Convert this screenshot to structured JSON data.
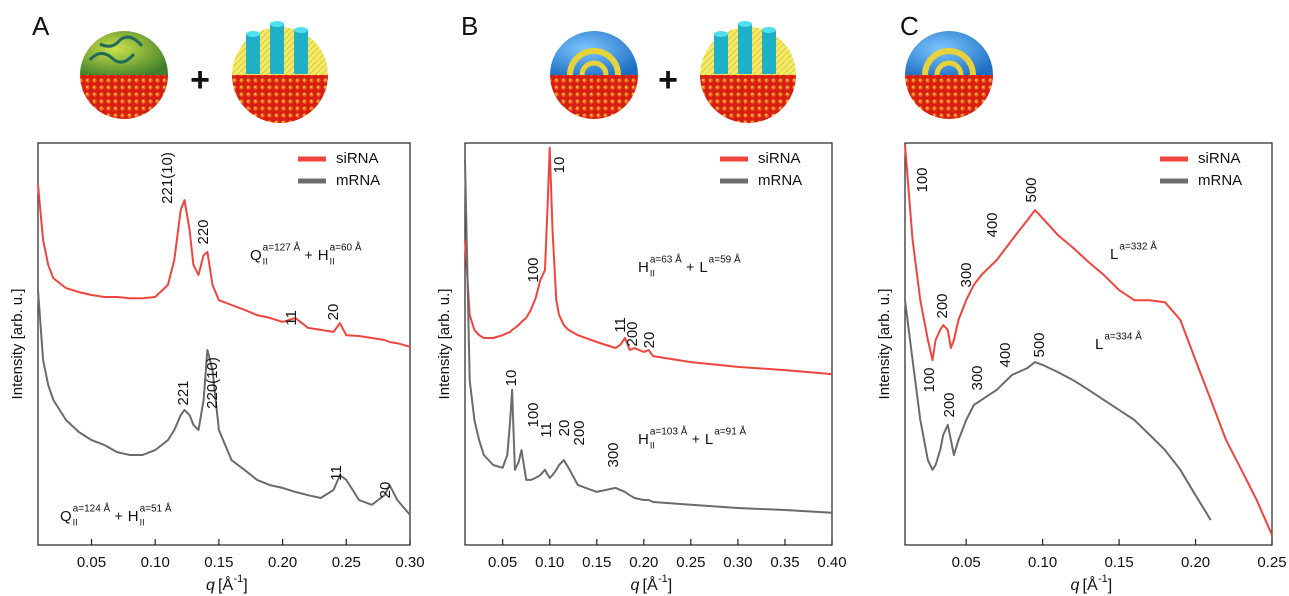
{
  "chart_data": [
    {
      "type": "line",
      "panel_label": "A",
      "plus_sign": "+",
      "xlabel": {
        "symbol": "q",
        "unit": "[Å",
        "exponent": "-1",
        "close": "]"
      },
      "ylabel": "Intensity [arb. u.]",
      "legend": "upper right",
      "xlim": [
        0.008,
        0.3
      ],
      "ylim": [
        0,
        100
      ],
      "xticks": [
        0.05,
        {
          "value": 0.1,
          "label": "0.10"
        },
        0.15,
        {
          "value": 0.2,
          "label": "0.20"
        },
        0.25,
        {
          "value": 0.3,
          "label": "0.30"
        }
      ],
      "x": [
        0.008,
        0.012,
        0.016,
        0.02,
        0.03,
        0.04,
        0.05,
        0.06,
        0.07,
        0.08,
        0.09,
        0.1,
        0.11,
        0.115,
        0.12,
        0.123,
        0.127,
        0.13,
        0.134,
        0.138,
        0.141,
        0.145,
        0.15,
        0.16,
        0.17,
        0.18,
        0.19,
        0.2,
        0.21,
        0.22,
        0.23,
        0.24,
        0.245,
        0.25,
        0.26,
        0.27,
        0.28,
        0.284,
        0.29,
        0.3
      ],
      "series": [
        {
          "name": "siRNA",
          "color": "#f0453f",
          "values": [
            89.6,
            75.9,
            69.7,
            66.4,
            63.9,
            62.9,
            62.2,
            61.7,
            61.7,
            61.4,
            61.4,
            61.7,
            64.7,
            70.9,
            83.3,
            85.8,
            78.4,
            69.7,
            67.2,
            72.1,
            72.9,
            64.7,
            60.9,
            59.7,
            58.5,
            57.2,
            56.5,
            55.5,
            56.5,
            54.0,
            53.5,
            53.0,
            55.2,
            52.2,
            52.0,
            51.5,
            51.0,
            50.5,
            50.2,
            49.3
          ]
        },
        {
          "name": "mRNA",
          "color": "#6b6b6b",
          "values": [
            63.4,
            46.0,
            39.8,
            36.1,
            31.1,
            28.1,
            26.1,
            24.9,
            23.1,
            22.4,
            22.4,
            23.6,
            26.1,
            28.6,
            32.3,
            33.6,
            32.3,
            29.9,
            28.6,
            36.1,
            48.5,
            43.5,
            28.6,
            21.1,
            18.7,
            16.2,
            14.9,
            14.2,
            13.2,
            12.4,
            11.7,
            13.7,
            17.4,
            16.2,
            11.2,
            10.0,
            12.4,
            14.9,
            11.2,
            7.5
          ]
        }
      ],
      "annotations": [
        {
          "text": "221(10)",
          "color": "#f0453f"
        },
        {
          "text": "220",
          "color": "#f0453f"
        },
        {
          "text": "11",
          "color": "#f0453f"
        },
        {
          "text": "20",
          "color": "#f0453f"
        },
        {
          "text": "221",
          "color": "#6b6b6b"
        },
        {
          "text": "220(10)",
          "color": "#6b6b6b"
        },
        {
          "text": "11",
          "color": "#6b6b6b"
        },
        {
          "text": "20",
          "color": "#6b6b6b"
        }
      ],
      "phase_labels": [
        {
          "color": "#f0453f",
          "joiner": "+",
          "terms": [
            {
              "base": "Q",
              "sub": "II",
              "sup": "a=127 Å"
            },
            {
              "base": "H",
              "sub": "II",
              "sup": "a=60 Å"
            }
          ]
        },
        {
          "color": "#8a8a8a",
          "joiner": "+",
          "terms": [
            {
              "base": "Q",
              "sub": "II",
              "sup": "a=124 Å"
            },
            {
              "base": "H",
              "sub": "II",
              "sup": "a=51 Å"
            }
          ]
        }
      ]
    },
    {
      "type": "line",
      "panel_label": "B",
      "plus_sign": "+",
      "xlabel": {
        "symbol": "q",
        "unit": "[Å",
        "exponent": "-1",
        "close": "]"
      },
      "ylabel": "Intensity [arb. u.]",
      "legend": "upper right",
      "xlim": [
        0.01,
        0.4
      ],
      "ylim": [
        0,
        100
      ],
      "xticks": [
        0.05,
        {
          "value": 0.1,
          "label": "0.10"
        },
        0.15,
        {
          "value": 0.2,
          "label": "0.20"
        },
        0.25,
        {
          "value": 0.3,
          "label": "0.30"
        },
        0.35,
        {
          "value": 0.4,
          "label": "0.40"
        }
      ],
      "x": [
        0.01,
        0.015,
        0.02,
        0.025,
        0.03,
        0.04,
        0.05,
        0.055,
        0.058,
        0.06,
        0.063,
        0.067,
        0.07,
        0.075,
        0.08,
        0.085,
        0.09,
        0.095,
        0.098,
        0.1,
        0.103,
        0.107,
        0.11,
        0.115,
        0.12,
        0.13,
        0.15,
        0.17,
        0.175,
        0.18,
        0.185,
        0.19,
        0.2,
        0.205,
        0.21,
        0.25,
        0.3,
        0.35,
        0.4
      ],
      "series": [
        {
          "name": "siRNA",
          "color": "#f0453f",
          "values": [
            75.9,
            57.2,
            53.5,
            52.2,
            51.5,
            51.5,
            52.2,
            52.7,
            53.0,
            53.5,
            54.0,
            54.7,
            55.5,
            56.5,
            58.5,
            61.4,
            65.9,
            68.4,
            85.8,
            98.8,
            78.4,
            60.9,
            57.2,
            54.7,
            53.5,
            52.2,
            50.5,
            49.0,
            49.8,
            51.5,
            48.5,
            49.0,
            48.0,
            48.5,
            47.0,
            45.5,
            44.3,
            43.5,
            42.5
          ]
        },
        {
          "name": "mRNA",
          "color": "#6b6b6b",
          "values": [
            95.8,
            41.0,
            31.1,
            26.1,
            22.4,
            19.9,
            19.2,
            22.4,
            31.1,
            38.6,
            18.7,
            20.6,
            23.6,
            16.2,
            16.2,
            16.7,
            17.4,
            18.7,
            17.4,
            16.7,
            17.4,
            18.7,
            19.9,
            21.1,
            19.2,
            14.9,
            13.2,
            14.2,
            13.7,
            13.2,
            12.4,
            11.7,
            11.2,
            11.2,
            10.7,
            10.0,
            9.2,
            8.7,
            8.0
          ]
        }
      ],
      "annotations": [
        {
          "text": "100",
          "color": "#f0453f"
        },
        {
          "text": "10",
          "color": "#f0453f"
        },
        {
          "text": "11",
          "color": "#f0453f"
        },
        {
          "text": "200",
          "color": "#f0453f"
        },
        {
          "text": "20",
          "color": "#f0453f"
        },
        {
          "text": "10",
          "color": "#6b6b6b"
        },
        {
          "text": "100",
          "color": "#6b6b6b"
        },
        {
          "text": "11",
          "color": "#6b6b6b"
        },
        {
          "text": "20",
          "color": "#6b6b6b"
        },
        {
          "text": "200",
          "color": "#6b6b6b"
        },
        {
          "text": "300",
          "color": "#6b6b6b"
        }
      ],
      "phase_labels": [
        {
          "color": "#f0453f",
          "joiner": "+",
          "terms": [
            {
              "base": "H",
              "sub": "II",
              "sup": "a=63 Å"
            },
            {
              "base": "L",
              "sup": "a=59 Å"
            }
          ]
        },
        {
          "color": "#8a8a8a",
          "joiner": "+",
          "terms": [
            {
              "base": "H",
              "sub": "II",
              "sup": "a=103 Å"
            },
            {
              "base": "L",
              "sup": "a=91 Å"
            }
          ]
        }
      ]
    },
    {
      "type": "line",
      "panel_label": "C",
      "xlabel": {
        "symbol": "q",
        "unit": "[Å",
        "exponent": "-1",
        "close": "]"
      },
      "ylabel": "Intensity [arb. u.]",
      "legend": "upper right",
      "xlim": [
        0.01,
        0.25
      ],
      "ylim": [
        0,
        100
      ],
      "xticks": [
        0.05,
        {
          "value": 0.1,
          "label": "0.10"
        },
        0.15,
        {
          "value": 0.2,
          "label": "0.20"
        },
        0.25
      ],
      "x": [
        0.01,
        0.015,
        0.02,
        0.025,
        0.028,
        0.03,
        0.033,
        0.035,
        0.038,
        0.04,
        0.042,
        0.045,
        0.05,
        0.055,
        0.06,
        0.07,
        0.08,
        0.09,
        0.095,
        0.1,
        0.11,
        0.12,
        0.13,
        0.14,
        0.15,
        0.16,
        0.17,
        0.18,
        0.19,
        0.2,
        0.21,
        0.22,
        0.23,
        0.24,
        0.25
      ],
      "series": [
        {
          "name": "siRNA",
          "color": "#f0453f",
          "values": [
            99.5,
            75.9,
            60.9,
            51.0,
            46.0,
            51.0,
            53.5,
            54.7,
            53.5,
            49.0,
            51.0,
            56.0,
            60.9,
            64.7,
            67.2,
            70.9,
            75.9,
            80.8,
            83.3,
            81.3,
            77.1,
            73.9,
            70.4,
            67.2,
            63.4,
            60.9,
            60.9,
            60.4,
            56.0,
            46.0,
            36.1,
            26.1,
            18.7,
            11.2,
            2.5
          ]
        },
        {
          "name": "mRNA",
          "color": "#6b6b6b",
          "values": [
            60.9,
            46.0,
            31.1,
            21.1,
            18.7,
            19.9,
            23.6,
            27.4,
            29.9,
            26.1,
            22.4,
            26.1,
            31.1,
            34.8,
            36.1,
            38.6,
            42.3,
            44.0,
            45.5,
            44.8,
            43.0,
            41.0,
            38.6,
            36.1,
            33.6,
            31.1,
            27.4,
            23.6,
            18.7,
            12.4,
            6.2,
            null,
            null,
            null,
            null
          ]
        }
      ],
      "annotations": [
        {
          "text": "100",
          "color": "#f0453f"
        },
        {
          "text": "200",
          "color": "#f0453f"
        },
        {
          "text": "300",
          "color": "#f0453f"
        },
        {
          "text": "400",
          "color": "#f0453f"
        },
        {
          "text": "500",
          "color": "#f0453f"
        },
        {
          "text": "100",
          "color": "#6b6b6b"
        },
        {
          "text": "200",
          "color": "#6b6b6b"
        },
        {
          "text": "300",
          "color": "#6b6b6b"
        },
        {
          "text": "400",
          "color": "#6b6b6b"
        },
        {
          "text": "500",
          "color": "#6b6b6b"
        }
      ],
      "phase_labels": [
        {
          "color": "#f0453f",
          "terms": [
            {
              "base": "L",
              "sup": "a=332 Å"
            }
          ]
        },
        {
          "color": "#8a8a8a",
          "terms": [
            {
              "base": "L",
              "sup": "a=334 Å"
            }
          ]
        }
      ]
    }
  ]
}
